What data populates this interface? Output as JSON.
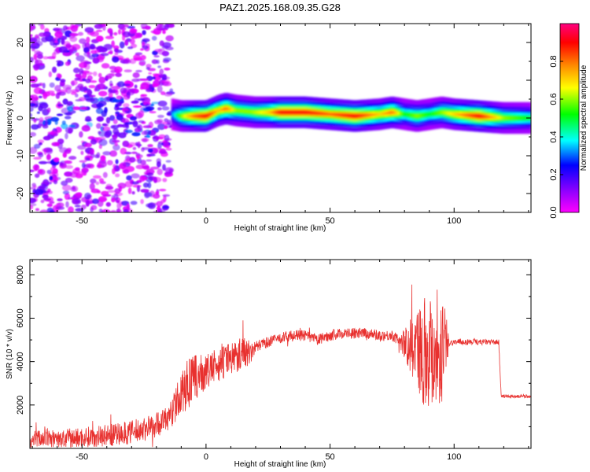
{
  "title": "PAZ1.2025.168.09.35.G28",
  "chart_data": [
    {
      "type": "heatmap",
      "xlabel": "Height of straight line (km)",
      "ylabel": "Frequency (Hz)",
      "colorbar_label": "Normalized spectral amplitude",
      "xlim": [
        -71,
        131
      ],
      "ylim": [
        -25,
        25
      ],
      "xticks": [
        -50,
        0,
        50,
        100
      ],
      "yticks": [
        -20,
        -10,
        0,
        10,
        20
      ],
      "colorbar_range": [
        0,
        1
      ],
      "colorbar_ticks": [
        0.0,
        0.2,
        0.4,
        0.6,
        0.8
      ],
      "colormap": [
        "#ff00ff",
        "#8800ff",
        "#0000ff",
        "#00ffff",
        "#00ff00",
        "#ffff00",
        "#ff8800",
        "#ff0000",
        "#ff0080"
      ],
      "noise_region_x": [
        -71,
        -14
      ],
      "ridge_x": [
        -14,
        131
      ],
      "ridge_freq": [
        [
          -14,
          1.0
        ],
        [
          -10,
          0.5
        ],
        [
          0,
          0.5
        ],
        [
          5,
          2.0
        ],
        [
          8,
          2.5
        ],
        [
          12,
          2.0
        ],
        [
          20,
          1.5
        ],
        [
          30,
          1.5
        ],
        [
          40,
          1.5
        ],
        [
          50,
          1.0
        ],
        [
          60,
          0.5
        ],
        [
          70,
          1.0
        ],
        [
          75,
          1.5
        ],
        [
          80,
          1.0
        ],
        [
          85,
          0.5
        ],
        [
          90,
          1.0
        ],
        [
          95,
          1.5
        ],
        [
          100,
          1.0
        ],
        [
          110,
          0.5
        ],
        [
          120,
          0.0
        ],
        [
          131,
          0.0
        ]
      ],
      "ridge_amplitude": [
        [
          -14,
          0.3
        ],
        [
          -10,
          0.6
        ],
        [
          -5,
          0.8
        ],
        [
          0,
          0.9
        ],
        [
          5,
          0.7
        ],
        [
          8,
          0.8
        ],
        [
          12,
          0.6
        ],
        [
          18,
          0.6
        ],
        [
          25,
          0.7
        ],
        [
          30,
          0.9
        ],
        [
          40,
          0.9
        ],
        [
          50,
          0.8
        ],
        [
          60,
          0.9
        ],
        [
          70,
          0.7
        ],
        [
          75,
          0.8
        ],
        [
          80,
          0.5
        ],
        [
          85,
          0.6
        ],
        [
          90,
          0.5
        ],
        [
          95,
          0.6
        ],
        [
          100,
          0.7
        ],
        [
          110,
          0.9
        ],
        [
          120,
          0.6
        ],
        [
          131,
          0.5
        ]
      ]
    },
    {
      "type": "line",
      "xlabel": "Height of straight line (km)",
      "ylabel": "SNR (10 * v/v)",
      "xlim": [
        -71,
        131
      ],
      "ylim": [
        0,
        8700
      ],
      "xticks": [
        -50,
        0,
        50,
        100
      ],
      "yticks": [
        2000,
        4000,
        6000,
        8000
      ],
      "color": "#e8312f",
      "series": [
        {
          "x": [
            -71,
            -65,
            -60,
            -55,
            -50,
            -45,
            -40,
            -35,
            -30,
            -25,
            -20,
            -15,
            -10,
            -7,
            -5,
            -2,
            0,
            3,
            5,
            8,
            10,
            13,
            15,
            18,
            20,
            25,
            30,
            35,
            40,
            45,
            50,
            55,
            60,
            65,
            70,
            75,
            80,
            85,
            90,
            95,
            100,
            105,
            110,
            115,
            118,
            119,
            120,
            125,
            131
          ],
          "y": [
            400,
            500,
            400,
            450,
            500,
            550,
            600,
            650,
            750,
            900,
            1100,
            1400,
            2500,
            3000,
            3200,
            3400,
            3500,
            3700,
            3900,
            4000,
            4200,
            4300,
            4500,
            4400,
            4700,
            4900,
            5100,
            5200,
            5200,
            5000,
            5200,
            5300,
            5300,
            5300,
            5200,
            5200,
            4800,
            4600,
            4500,
            4800,
            4900,
            4900,
            4900,
            4900,
            4900,
            2400,
            2400,
            2400,
            2400
          ]
        }
      ],
      "noise_band": {
        "x": [
          -71,
          -15,
          -7,
          0,
          10,
          17,
          20,
          78,
          88,
          95,
          98,
          118,
          120,
          131
        ],
        "amplitude": [
          400,
          600,
          1200,
          800,
          800,
          700,
          250,
          250,
          2600,
          3000,
          150,
          120,
          80,
          80
        ]
      }
    }
  ]
}
